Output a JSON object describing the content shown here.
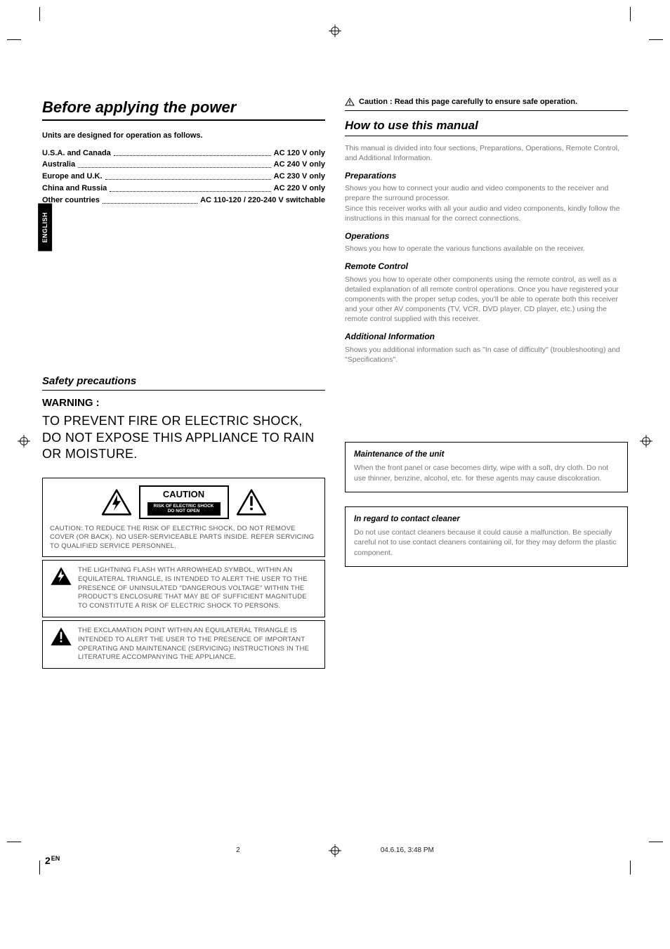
{
  "registration_bars": {
    "left_swatches": [
      "#000000",
      "#333333",
      "#555555",
      "#777777",
      "#999999",
      "#bbbbbb",
      "#dddddd",
      "#f2f2f2"
    ],
    "right_swatches": [
      "#00aeef",
      "#ec008c",
      "#fff200",
      "#000000",
      "#ed1c24",
      "#00a651",
      "#2e3192",
      "#f7941d",
      "#92278f",
      "#f49ac1"
    ]
  },
  "side_tab": "ENGLISH",
  "left": {
    "title": "Before applying the power",
    "units_note": "Units are designed for operation as follows.",
    "voltages": [
      {
        "region": "U.S.A. and Canada",
        "value": "AC 120 V only"
      },
      {
        "region": "Australia",
        "value": "AC 240 V only"
      },
      {
        "region": "Europe and U.K.",
        "value": "AC 230 V only"
      },
      {
        "region": "China and Russia",
        "value": "AC 220 V only"
      },
      {
        "region": "Other countries",
        "value": "AC 110-120 / 220-240 V switchable"
      }
    ],
    "safety_title": "Safety precautions",
    "warning_heading": "WARNING :",
    "warning_body": "TO PREVENT FIRE OR ELECTRIC SHOCK, DO NOT EXPOSE THIS APPLIANCE TO RAIN OR MOISTURE.",
    "caution_label_big": "CAUTION",
    "caution_label_small1": "RISK OF ELECTRIC SHOCK",
    "caution_label_small2": "DO NOT OPEN",
    "caution_text": "CAUTION: TO REDUCE THE RISK OF ELECTRIC SHOCK, DO NOT REMOVE COVER (OR BACK). NO USER-SERVICEABLE PARTS INSIDE. REFER SERVICING TO QUALIFIED SERVICE PERSONNEL.",
    "lightning_text": "THE LIGHTNING FLASH WITH ARROWHEAD SYMBOL, WITHIN AN EQUILATERAL TRIANGLE, IS INTENDED TO ALERT THE USER TO THE PRESENCE OF UNINSULATED \"DANGEROUS VOLTAGE\" WITHIN THE PRODUCT'S ENCLOSURE THAT MAY BE OF SUFFICIENT MAGNITUDE TO CONSTITUTE A RISK OF ELECTRIC SHOCK TO PERSONS.",
    "exclam_text": "THE EXCLAMATION POINT WITHIN AN EQUILATERAL TRIANGLE IS INTENDED TO ALERT THE USER TO THE PRESENCE OF IMPORTANT OPERATING AND MAINTENANCE (SERVICING) INSTRUCTIONS IN THE LITERATURE ACCOMPANYING THE APPLIANCE."
  },
  "right": {
    "caution_header": "Caution : Read this page carefully to ensure safe operation.",
    "howto_title": "How to use this manual",
    "intro": "This manual is divided into four sections, Preparations, Operations, Remote Control, and Additional Information.",
    "sections": [
      {
        "title": "Preparations",
        "body": "Shows you how to connect your audio and video components to the receiver and prepare the surround processor.\nSince this receiver works with all your audio and video components, kindly follow the instructions in this manual for the correct connections."
      },
      {
        "title": "Operations",
        "body": "Shows you how to operate the various functions available on the receiver."
      },
      {
        "title": "Remote Control",
        "body": "Shows you how to operate other components using the remote control, as well as a detailed explanation of all remote control operations. Once you have registered your components with the proper setup codes, you'll be able to operate both this receiver and your other AV components (TV, VCR, DVD player, CD player, etc.) using the remote control supplied with this receiver."
      },
      {
        "title": "Additional Information",
        "body": "Shows you additional information such as \"In case of difficulty\" (troubleshooting) and \"Specifications\"."
      }
    ],
    "maint_title": "Maintenance of the unit",
    "maint_body": "When the front panel or case becomes dirty, wipe with a soft, dry cloth. Do not use thinner, benzine, alcohol, etc. for these agents may cause discoloration.",
    "cleaner_title": "In regard to contact cleaner",
    "cleaner_body": "Do not use contact cleaners because it could cause a malfunction. Be specially careful not to use contact cleaners containing oil, for they may deform the plastic component."
  },
  "footer": {
    "page_num": "2",
    "page_lang": "EN",
    "center_page": "2",
    "timestamp": "04.6.16, 3:48 PM"
  },
  "colors": {
    "text_grey": "#777777",
    "rule": "#000000"
  }
}
